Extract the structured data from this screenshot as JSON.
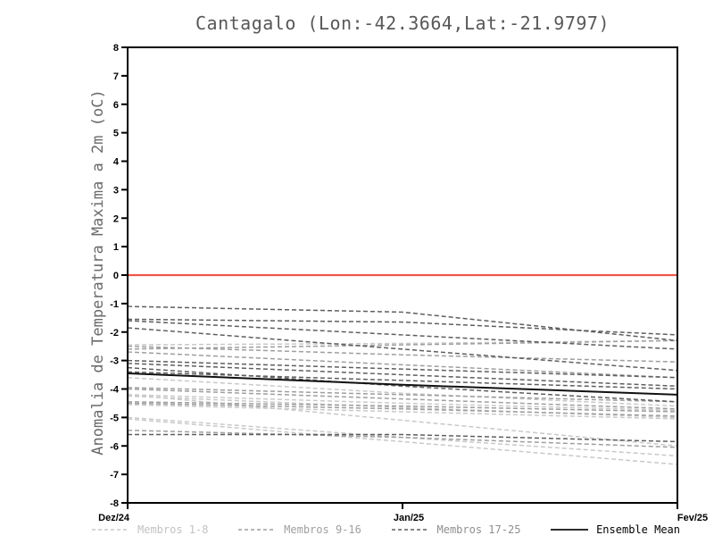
{
  "title": "Cantagalo (Lon:-42.3664,Lat:-21.9797)",
  "ylabel": "Anomalia de Temperatura Maxima a 2m (oC)",
  "chart_data": {
    "type": "line",
    "title": "Cantagalo (Lon:-42.3664,Lat:-21.9797)",
    "xlabel": "",
    "ylabel": "Anomalia de Temperatura Maxima a 2m (oC)",
    "x_tick_labels": [
      "Dez/24",
      "Jan/25",
      "Fev/25"
    ],
    "y_tick_labels": [
      "8",
      "7",
      "6",
      "5",
      "4",
      "3",
      "2",
      "1",
      "0",
      "-1",
      "-2",
      "-3",
      "-4",
      "-5",
      "-6",
      "-7",
      "-8"
    ],
    "ylim": [
      -8,
      8
    ],
    "grid": false,
    "legend_position": "bottom",
    "zero_line": {
      "value": 0,
      "color": "#f0564a"
    },
    "groups": [
      {
        "name": "Membros 1-8",
        "color": "#c9c9c9",
        "line_style": "dashed",
        "members": [
          [
            -2.45,
            -2.4,
            -2.3
          ],
          [
            -3.6,
            -4.15,
            -4.6
          ],
          [
            -4.2,
            -4.5,
            -4.75
          ],
          [
            -4.25,
            -4.65,
            -5.0
          ],
          [
            -4.2,
            -5.1,
            -6.0
          ],
          [
            -5.0,
            -5.7,
            -6.35
          ],
          [
            -5.05,
            -5.85,
            -6.65
          ],
          [
            -4.55,
            -4.8,
            -5.05
          ]
        ]
      },
      {
        "name": "Membros 9-16",
        "color": "#9e9e9e",
        "line_style": "dashed",
        "members": [
          [
            -2.5,
            -2.8,
            -3.05
          ],
          [
            -2.6,
            -2.45,
            -2.3
          ],
          [
            -2.7,
            -3.15,
            -3.6
          ],
          [
            -3.95,
            -4.2,
            -4.45
          ],
          [
            -4.0,
            -4.35,
            -4.7
          ],
          [
            -4.45,
            -4.6,
            -4.8
          ],
          [
            -4.5,
            -4.7,
            -4.95
          ],
          [
            -5.45,
            -5.7,
            -6.05
          ]
        ]
      },
      {
        "name": "Membros 17-25",
        "color": "#5e5e5e",
        "line_style": "dashed",
        "members": [
          [
            -1.1,
            -1.3,
            -2.3
          ],
          [
            -1.55,
            -1.65,
            -2.1
          ],
          [
            -1.6,
            -2.1,
            -2.6
          ],
          [
            -1.85,
            -2.6,
            -3.35
          ],
          [
            -3.0,
            -3.3,
            -3.6
          ],
          [
            -3.1,
            -3.5,
            -3.9
          ],
          [
            -3.25,
            -3.9,
            -4.45
          ],
          [
            -3.4,
            -3.7,
            -4.0
          ],
          [
            -5.6,
            -5.6,
            -5.85
          ]
        ]
      }
    ],
    "ensemble_mean": {
      "name": "Ensemble Mean",
      "color": "#111111",
      "line_style": "solid",
      "values": [
        -3.45,
        -3.85,
        -4.2
      ]
    }
  }
}
